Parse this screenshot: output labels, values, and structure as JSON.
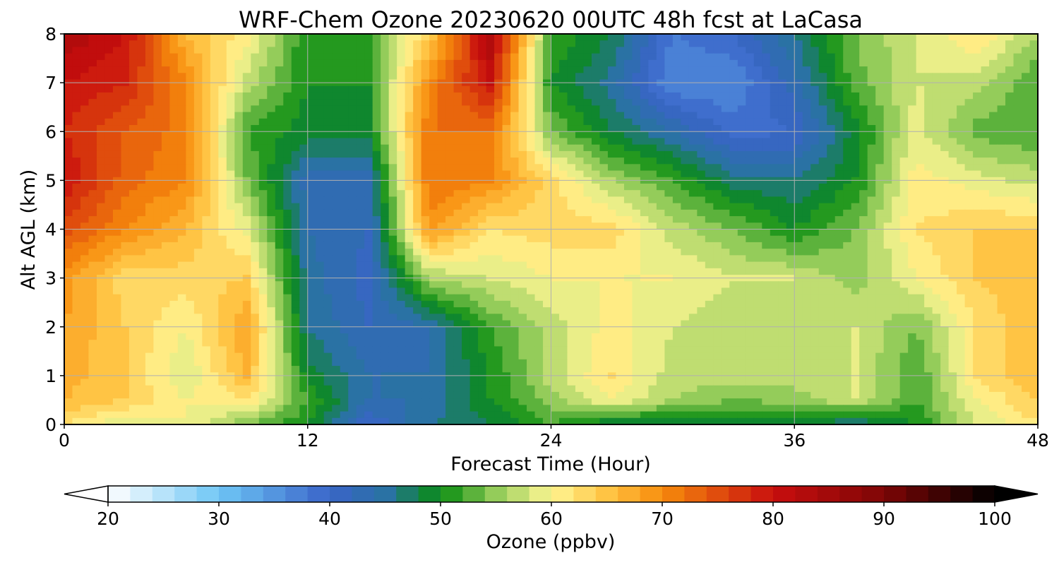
{
  "chart_data": {
    "type": "heatmap",
    "title": "WRF-Chem Ozone  20230620 00UTC 48h fcst at LaCasa",
    "xlabel": "Forecast Time (Hour)",
    "ylabel": "Alt AGL (km)",
    "xlim": [
      0,
      48
    ],
    "ylim": [
      0,
      8
    ],
    "xticks": [
      0,
      12,
      24,
      36,
      48
    ],
    "yticks": [
      0,
      1,
      2,
      3,
      4,
      5,
      6,
      7,
      8
    ],
    "grid": true,
    "x": [
      0,
      3,
      6,
      9,
      12,
      15,
      18,
      21,
      24,
      27,
      30,
      33,
      36,
      39,
      42,
      45,
      48
    ],
    "y": [
      0,
      0.5,
      1,
      2,
      3,
      4,
      5,
      6,
      7,
      8
    ],
    "z": [
      [
        62,
        58,
        60,
        54,
        50,
        40,
        46,
        48,
        52,
        48,
        48,
        48,
        48,
        46,
        50,
        58,
        62
      ],
      [
        66,
        64,
        60,
        62,
        52,
        44,
        44,
        50,
        55,
        60,
        56,
        54,
        55,
        58,
        52,
        60,
        64
      ],
      [
        67,
        64,
        58,
        66,
        49,
        44,
        44,
        50,
        57,
        62,
        57,
        57,
        57,
        58,
        52,
        62,
        66
      ],
      [
        68,
        64,
        60,
        68,
        46,
        42,
        44,
        52,
        57,
        61,
        58,
        56,
        57,
        58,
        54,
        62,
        66
      ],
      [
        69,
        63,
        63,
        64,
        45,
        41,
        56,
        58,
        60,
        60,
        60,
        58,
        58,
        55,
        60,
        64,
        66
      ],
      [
        75,
        70,
        66,
        59,
        44,
        42,
        69,
        62,
        63,
        63,
        57,
        54,
        50,
        54,
        62,
        64,
        64
      ],
      [
        80,
        73,
        70,
        54,
        43,
        43,
        72,
        70,
        63,
        56,
        52,
        47,
        46,
        50,
        61,
        59,
        57
      ],
      [
        78,
        74,
        71,
        52,
        49,
        49,
        72,
        72,
        54,
        48,
        44,
        39,
        40,
        49,
        59,
        53,
        52
      ],
      [
        80,
        78,
        70,
        57,
        50,
        50,
        70,
        80,
        50,
        45,
        36,
        36,
        43,
        53,
        58,
        57,
        52
      ],
      [
        84,
        80,
        66,
        61,
        50,
        52,
        64,
        84,
        52,
        48,
        38,
        40,
        46,
        54,
        58,
        62,
        56
      ]
    ],
    "colorbar": {
      "label": "Ozone  (ppbv)",
      "min": 20,
      "max": 100,
      "step": 2,
      "ticks": [
        20,
        30,
        40,
        50,
        60,
        70,
        80,
        90,
        100
      ],
      "extend": "both",
      "stops": [
        {
          "v": 20,
          "c": "#ffffff"
        },
        {
          "v": 30,
          "c": "#6ec6f5"
        },
        {
          "v": 40,
          "c": "#3a64c8"
        },
        {
          "v": 45,
          "c": "#2a72a4"
        },
        {
          "v": 50,
          "c": "#088c10"
        },
        {
          "v": 55,
          "c": "#94cc5a"
        },
        {
          "v": 60,
          "c": "#fff694"
        },
        {
          "v": 65,
          "c": "#ffc444"
        },
        {
          "v": 70,
          "c": "#f78c0c"
        },
        {
          "v": 80,
          "c": "#c80e0e"
        },
        {
          "v": 90,
          "c": "#7e0606"
        },
        {
          "v": 100,
          "c": "#000000"
        }
      ]
    }
  }
}
